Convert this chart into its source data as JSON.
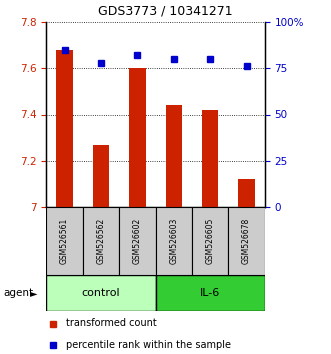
{
  "title": "GDS3773 / 10341271",
  "categories": [
    "GSM526561",
    "GSM526562",
    "GSM526602",
    "GSM526603",
    "GSM526605",
    "GSM526678"
  ],
  "bar_values": [
    7.68,
    7.27,
    7.6,
    7.44,
    7.42,
    7.12
  ],
  "bar_bottom": 7.0,
  "percentile_values": [
    85,
    78,
    82,
    80,
    80,
    76
  ],
  "ylim_left": [
    7.0,
    7.8
  ],
  "ylim_right": [
    0,
    100
  ],
  "yticks_left": [
    7.0,
    7.2,
    7.4,
    7.6,
    7.8
  ],
  "yticks_right": [
    0,
    25,
    50,
    75,
    100
  ],
  "ytick_labels_right": [
    "0",
    "25",
    "50",
    "75",
    "100%"
  ],
  "bar_color": "#cc2200",
  "marker_color": "#0000cc",
  "n_control": 3,
  "n_il6": 3,
  "control_color": "#bbffbb",
  "il6_color": "#33cc33",
  "agent_label": "agent",
  "control_label": "control",
  "il6_label": "IL-6",
  "legend_bar_label": "transformed count",
  "legend_marker_label": "percentile rank within the sample",
  "bar_width": 0.45,
  "tick_label_color_left": "#cc2200",
  "tick_label_color_right": "#0000cc",
  "sample_box_color": "#cccccc",
  "title_fontsize": 9
}
